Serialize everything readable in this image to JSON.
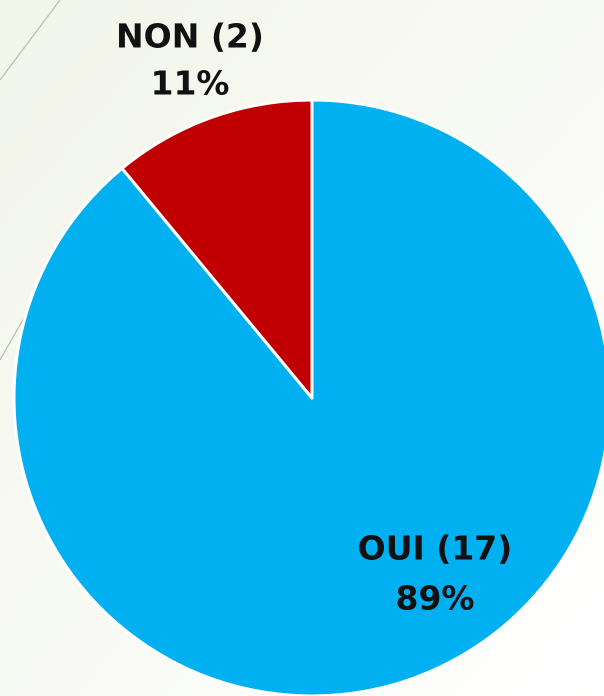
{
  "chart_data": {
    "type": "pie",
    "categories": [
      "OUI (17)",
      "NON (2)"
    ],
    "values": [
      89,
      11
    ],
    "value_labels": [
      "89%",
      "11%"
    ],
    "colors": [
      "#00b0f0",
      "#c00000"
    ]
  }
}
